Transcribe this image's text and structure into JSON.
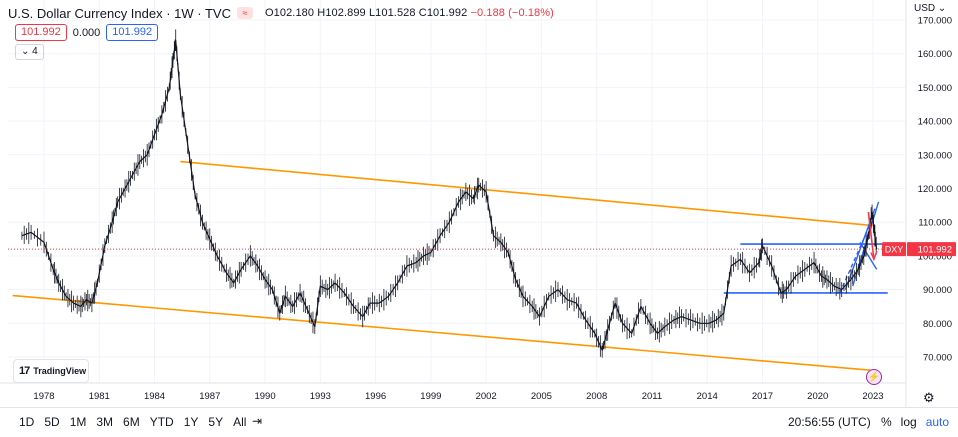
{
  "header": {
    "title": "U.S. Dollar Currency Index · 1W · TVC",
    "open_label": "O",
    "open": "102.180",
    "high_label": "H",
    "high": "102.899",
    "low_label": "L",
    "low": "101.528",
    "close_label": "C",
    "close": "101.992",
    "change": "−0.188 (−0.18%)",
    "bid": "101.992",
    "spread": "0.000",
    "ask": "101.992",
    "indicators_count": "4"
  },
  "axis": {
    "currency": "USD",
    "price_ticks": [
      "170.000",
      "160.000",
      "150.000",
      "140.000",
      "130.000",
      "120.000",
      "110.000",
      "100.000",
      "90.000",
      "80.000",
      "70.000"
    ],
    "year_ticks": [
      "1978",
      "1981",
      "1984",
      "1987",
      "1990",
      "1993",
      "1996",
      "1999",
      "2002",
      "2005",
      "2008",
      "2011",
      "2014",
      "2017",
      "2020",
      "2023"
    ]
  },
  "last_price": {
    "symbol": "DXY",
    "value": "101.992"
  },
  "logo_text": "TradingView",
  "bottom": {
    "ranges": [
      "1D",
      "5D",
      "1M",
      "3M",
      "6M",
      "YTD",
      "1Y",
      "5Y",
      "All"
    ],
    "time": "20:56:55 (UTC)",
    "percent": "%",
    "log": "log",
    "auto": "auto"
  },
  "colors": {
    "price_line": "#131722",
    "channel": "#ff9800",
    "trend": "#2962ff",
    "last_price": "#f23645",
    "arrow": "#f23645"
  },
  "chart_data": {
    "type": "line",
    "title": "U.S. Dollar Currency Index · 1W · TVC",
    "xlabel": "",
    "ylabel": "",
    "ylim": [
      60,
      175
    ],
    "grid": true,
    "x": [
      1976.8,
      1977.3,
      1978.0,
      1978.5,
      1978.8,
      1979.2,
      1979.6,
      1980.0,
      1980.3,
      1980.6,
      1980.9,
      1981.3,
      1981.7,
      1982.0,
      1982.4,
      1982.8,
      1983.2,
      1983.6,
      1984.0,
      1984.4,
      1984.8,
      1985.0,
      1985.15,
      1985.4,
      1985.8,
      1986.2,
      1986.6,
      1987.0,
      1987.4,
      1987.9,
      1988.3,
      1988.7,
      1989.2,
      1989.6,
      1990.0,
      1990.4,
      1990.8,
      1991.1,
      1991.5,
      1991.9,
      1992.3,
      1992.7,
      1993.0,
      1993.4,
      1993.8,
      1994.3,
      1994.8,
      1995.3,
      1995.7,
      1996.2,
      1996.7,
      1997.2,
      1997.7,
      1998.2,
      1998.6,
      1999.0,
      1999.5,
      2000.0,
      2000.5,
      2000.9,
      2001.3,
      2001.6,
      2002.0,
      2002.4,
      2002.8,
      2003.2,
      2003.6,
      2004.0,
      2004.5,
      2004.9,
      2005.4,
      2005.9,
      2006.4,
      2006.9,
      2007.4,
      2007.9,
      2008.3,
      2008.6,
      2009.0,
      2009.4,
      2009.9,
      2010.4,
      2010.9,
      2011.3,
      2011.7,
      2012.2,
      2012.6,
      2013.1,
      2013.6,
      2014.1,
      2014.5,
      2014.9,
      2015.3,
      2015.8,
      2016.3,
      2016.8,
      2017.0,
      2017.5,
      2018.0,
      2018.3,
      2018.8,
      2019.3,
      2019.8,
      2020.2,
      2020.5,
      2020.9,
      2021.3,
      2021.8,
      2022.2,
      2022.5,
      2022.75,
      2022.95,
      2023.1,
      2023.2
    ],
    "series": [
      {
        "values": [
          106,
          107,
          104,
          96,
          92,
          88,
          86,
          85,
          87,
          86,
          92,
          103,
          110,
          116,
          120,
          124,
          128,
          130,
          136,
          142,
          150,
          158,
          164,
          148,
          133,
          118,
          110,
          105,
          100,
          95,
          92,
          96,
          100,
          97,
          93,
          90,
          83,
          88,
          85,
          89,
          84,
          79,
          91,
          90,
          92,
          89,
          85,
          82,
          86,
          86,
          88,
          92,
          97,
          98,
          100,
          101,
          106,
          110,
          116,
          119,
          117,
          121,
          119,
          106,
          104,
          101,
          93,
          88,
          85,
          82,
          88,
          90,
          87,
          86,
          81,
          77,
          72,
          78,
          86,
          80,
          77,
          85,
          80,
          77,
          79,
          81,
          82,
          81,
          80,
          80,
          81,
          83,
          97,
          99,
          95,
          98,
          103,
          97,
          89,
          90,
          94,
          96,
          98,
          94,
          93,
          91,
          90,
          93,
          96,
          100,
          106,
          113,
          106,
          102
        ]
      }
    ],
    "annotations": {
      "upper_channel": [
        [
          1985.4,
          128
        ],
        [
          2023.0,
          109
        ]
      ],
      "lower_channel": [
        [
          1976.8,
          88
        ],
        [
          2023.0,
          66
        ]
      ],
      "resistance": [
        [
          2015.8,
          103.5
        ],
        [
          2023.8,
          103.5
        ]
      ],
      "support": [
        [
          2014.9,
          89
        ],
        [
          2023.8,
          89
        ]
      ]
    }
  }
}
